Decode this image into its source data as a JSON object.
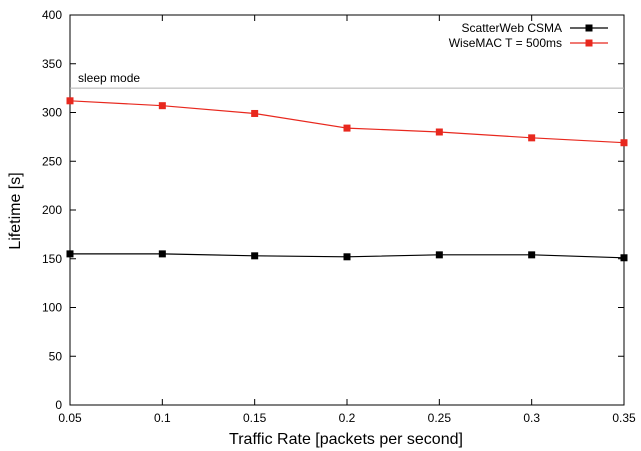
{
  "chart_data": {
    "type": "line",
    "title": "",
    "xlabel": "Traffic Rate [packets per second]",
    "ylabel": "Lifetime [s]",
    "xlim": [
      0.05,
      0.35
    ],
    "ylim": [
      0,
      400
    ],
    "x": [
      0.05,
      0.1,
      0.15,
      0.2,
      0.25,
      0.3,
      0.35
    ],
    "x_tick_labels": [
      "0.05",
      "0.1",
      "0.15",
      "0.2",
      "0.25",
      "0.3",
      "0.35"
    ],
    "y_ticks": [
      0,
      50,
      100,
      150,
      200,
      250,
      300,
      350,
      400
    ],
    "grid": false,
    "legend_position": "top-right",
    "series": [
      {
        "name": "ScatterWeb CSMA",
        "color": "#000000",
        "marker": "square",
        "values": [
          155,
          155,
          153,
          152,
          154,
          154,
          151
        ]
      },
      {
        "name": "WiseMAC T = 500ms",
        "color": "#e8281e",
        "marker": "square",
        "values": [
          312,
          307,
          299,
          284,
          280,
          274,
          269
        ]
      }
    ],
    "reference_lines": [
      {
        "label": "sleep mode",
        "y": 325,
        "color": "#b0b0b0"
      }
    ]
  }
}
